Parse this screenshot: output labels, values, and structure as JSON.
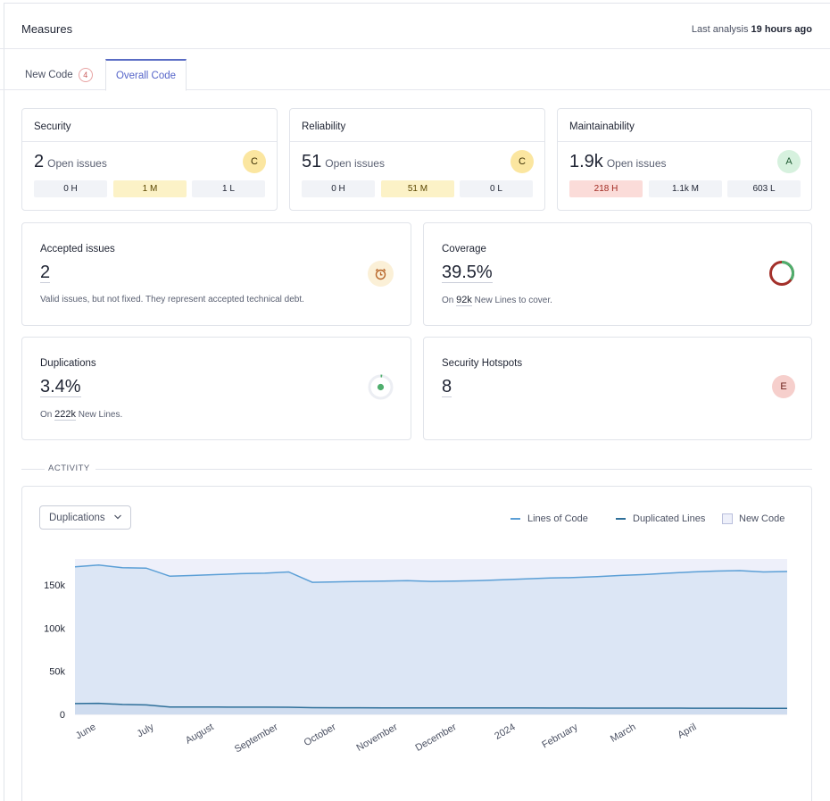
{
  "header": {
    "title": "Measures",
    "last_analysis_prefix": "Last analysis",
    "last_analysis_value": "19 hours ago"
  },
  "tabs": {
    "new_code_label": "New Code",
    "new_code_count": "4",
    "overall_label": "Overall Code"
  },
  "security": {
    "title": "Security",
    "count": "2",
    "label": "Open issues",
    "grade": "C",
    "high": "0 H",
    "medium": "1 M",
    "low": "1 L"
  },
  "reliability": {
    "title": "Reliability",
    "count": "51",
    "label": "Open issues",
    "grade": "C",
    "high": "0 H",
    "medium": "51 M",
    "low": "0 L"
  },
  "maintainability": {
    "title": "Maintainability",
    "count": "1.9k",
    "label": "Open issues",
    "grade": "A",
    "high": "218 H",
    "medium": "1.1k M",
    "low": "603 L"
  },
  "accepted": {
    "title": "Accepted issues",
    "value": "2",
    "note": "Valid issues, but not fixed. They represent accepted technical debt."
  },
  "coverage": {
    "title": "Coverage",
    "value": "39.5%",
    "note_prefix": "On",
    "note_value": "92k",
    "note_suffix": "New Lines to cover."
  },
  "duplications": {
    "title": "Duplications",
    "value": "3.4%",
    "note_prefix": "On",
    "note_value": "222k",
    "note_suffix": "New Lines."
  },
  "hotspots": {
    "title": "Security Hotspots",
    "value": "8",
    "grade": "E"
  },
  "activity": {
    "label": "ACTIVITY",
    "select_value": "Duplications",
    "legend": {
      "lines_of_code": "Lines of Code",
      "duplicated_lines": "Duplicated Lines",
      "new_code": "New Code"
    }
  },
  "colors": {
    "accent": "#5a6cc4",
    "loc_line": "#5b9fd6",
    "dup_line": "#2e6f99",
    "area": "#dce6f5",
    "new_code_bg": "#eef0fa"
  },
  "chart_data": {
    "type": "area",
    "title": "",
    "xlabel": "",
    "ylabel": "",
    "ylim": [
      0,
      180000
    ],
    "yticks": [
      "150k",
      "100k",
      "50k",
      "0"
    ],
    "ytick_values": [
      150000,
      100000,
      50000,
      0
    ],
    "xticks": [
      "June",
      "July",
      "August",
      "September",
      "October",
      "November",
      "December",
      "2024",
      "February",
      "March",
      "April"
    ],
    "series": [
      {
        "name": "Lines of Code",
        "values": [
          171000,
          173000,
          170000,
          169500,
          160000,
          161000,
          162000,
          163000,
          163500,
          165000,
          153000,
          153500,
          154000,
          154500,
          155000,
          154000,
          154500,
          155000,
          156000,
          157000,
          158000,
          158500,
          159500,
          161000,
          162000,
          163500,
          165000,
          166000,
          166500,
          165000,
          165500
        ]
      },
      {
        "name": "Duplicated Lines",
        "values": [
          12500,
          12800,
          11500,
          11000,
          8500,
          8500,
          8500,
          8400,
          8400,
          8300,
          7800,
          7700,
          7700,
          7600,
          7600,
          7500,
          7400,
          7400,
          7400,
          7400,
          7300,
          7300,
          7200,
          7200,
          7200,
          7200,
          7100,
          7100,
          7100,
          7000,
          6900
        ]
      }
    ],
    "new_code_period": "entire range"
  }
}
